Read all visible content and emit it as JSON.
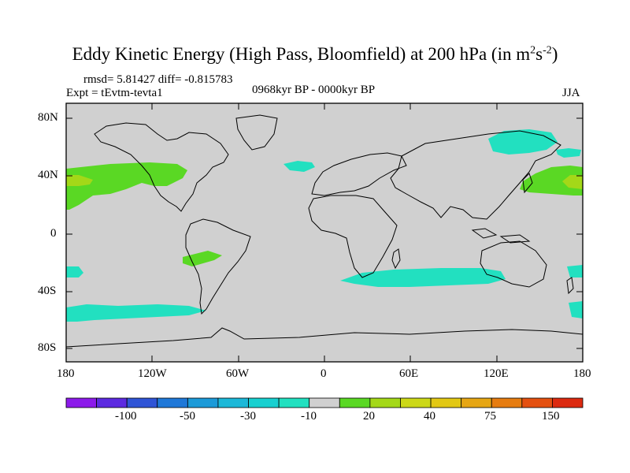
{
  "title": {
    "main": "Eddy Kinetic Energy (High Pass, Bloomfield) at 200 hPa (in m",
    "sup1": "2",
    "mid": "s",
    "sup2": "-2",
    "end": ")"
  },
  "stats": "rmsd= 5.81427  diff= -0.815783",
  "experiment": "Expt = tEvtm-tevta1",
  "period": "0968kyr BP - 0000kyr BP",
  "season": "JJA",
  "lat_labels": [
    "80N",
    "40N",
    "0",
    "40S",
    "80S"
  ],
  "lon_labels": [
    "180",
    "120W",
    "60W",
    "0",
    "60E",
    "120E",
    "180"
  ],
  "colorbar": {
    "colors": [
      "#8c1aea",
      "#5c2ae0",
      "#2f54d6",
      "#1f78d8",
      "#1c9ad8",
      "#1cb8d8",
      "#18d0d0",
      "#22e0c0",
      "#d0d0d0",
      "#5ad824",
      "#a4d818",
      "#ccd818",
      "#e2c814",
      "#e6a614",
      "#e67c10",
      "#e45010",
      "#dc2a10"
    ],
    "labels": [
      "-100",
      "-50",
      "-30",
      "-10",
      "20",
      "40",
      "75",
      "150"
    ]
  },
  "map_colors": {
    "ocean": "#d0d0d0",
    "cyan": "#22e0c0",
    "green": "#5ad824",
    "lime": "#a4d818"
  }
}
